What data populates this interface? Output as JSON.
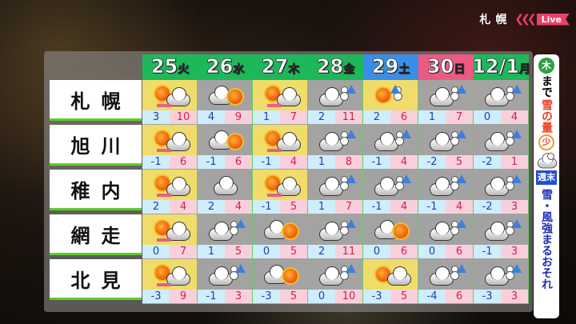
{
  "live": {
    "city": "札幌",
    "label": "Live"
  },
  "days": [
    {
      "day": "25",
      "wd": "火",
      "color": "#1cb85a"
    },
    {
      "day": "26",
      "wd": "水",
      "color": "#1cb85a"
    },
    {
      "day": "27",
      "wd": "木",
      "color": "#1cb85a"
    },
    {
      "day": "28",
      "wd": "金",
      "color": "#1cb85a"
    },
    {
      "day": "29",
      "wd": "土",
      "color": "#3a8ee8"
    },
    {
      "day": "30",
      "wd": "日",
      "color": "#ec5a82"
    },
    {
      "day": "12/1",
      "wd": "月",
      "color": "#1cb85a"
    }
  ],
  "cities": [
    {
      "name": "札幌",
      "icons": [
        "sun_cloud",
        "cloud_sun",
        "sun_cloud",
        "cloud_snow",
        "sun_snow",
        "cloud_snow",
        "cloud_snow"
      ],
      "lows": [
        "3",
        "4",
        "1",
        "2",
        "2",
        "1",
        "0"
      ],
      "highs": [
        "10",
        "9",
        "7",
        "11",
        "6",
        "7",
        "4"
      ]
    },
    {
      "name": "旭川",
      "icons": [
        "sun_cloud",
        "cloud_sun",
        "sun_cloud",
        "cloud_snow",
        "cloud_snow",
        "cloud_snow",
        "cloud_snow"
      ],
      "lows": [
        "-1",
        "-1",
        "-1",
        "1",
        "-1",
        "-2",
        "-2"
      ],
      "highs": [
        "6",
        "6",
        "4",
        "8",
        "4",
        "5",
        "1"
      ]
    },
    {
      "name": "稚内",
      "icons": [
        "sun_cloud",
        "cloud",
        "sun_cloud",
        "cloud_snow",
        "cloud_snow",
        "cloud_snow",
        "cloud_snow"
      ],
      "lows": [
        "2",
        "2",
        "-1",
        "1",
        "-1",
        "-1",
        "-2"
      ],
      "highs": [
        "4",
        "4",
        "5",
        "7",
        "4",
        "4",
        "3"
      ]
    },
    {
      "name": "網走",
      "icons": [
        "sun_cloud",
        "cloud_snow",
        "cloud_sun",
        "cloud_snow",
        "cloud_sun",
        "cloud_snow",
        "cloud_snow"
      ],
      "lows": [
        "0",
        "1",
        "0",
        "2",
        "0",
        "0",
        "-1"
      ],
      "highs": [
        "7",
        "5",
        "5",
        "11",
        "6",
        "6",
        "3"
      ]
    },
    {
      "name": "北見",
      "icons": [
        "sun_cloud",
        "cloud_snow",
        "cloud_sun",
        "cloud_snow",
        "sun_cloud_nobar",
        "cloud_snow",
        "cloud_snow"
      ],
      "lows": [
        "-3",
        "-1",
        "-3",
        "0",
        "-3",
        "-4",
        "-3"
      ],
      "highs": [
        "9",
        "3",
        "5",
        "10",
        "5",
        "6",
        "3"
      ]
    }
  ],
  "side": {
    "day": "木",
    "made": "まで",
    "amount": "雪の量",
    "small": "少",
    "weekend": "週末",
    "warning": "雪・風強まるおそれ"
  }
}
